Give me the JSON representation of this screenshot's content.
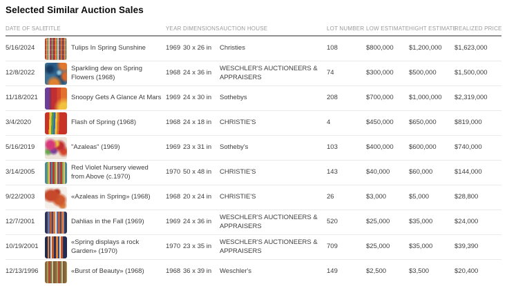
{
  "page_title": "Selected Similar Auction Sales",
  "styles": {
    "background": "#ffffff",
    "title_color": "#0a0a0a",
    "header_text_color": "#9b9b9b",
    "header_rule_color": "#8f8f8f",
    "body_text_color": "#3c3c3c",
    "row_divider_color": "#e9e9e9"
  },
  "chart_data": {
    "type": "table",
    "title": "Selected Similar Auction Sales",
    "columns": [
      "DATE OF SALE",
      "TITLE",
      "YEAR",
      "DIMENSIONS",
      "AUCTION HOUSE",
      "LOT NUMBER",
      "LOW ESTIMATE",
      "HIGHT ESTIMATE",
      "REALIZED PRICE"
    ],
    "rows": [
      {
        "date": "5/16/2024",
        "title": "Tulips In Spring Sunshine",
        "year": "1969",
        "dimensions": "30 x 26 in",
        "auction_house": "Christies",
        "lot_number": "108",
        "low_estimate": "$800,000",
        "hight_estimate": "$1,200,000",
        "realized_price": "$1,623,000",
        "thumbnail": "abstract painting with fine multicolor vertical stripes",
        "thumb_style": "background-image: repeating-linear-gradient(0deg, rgba(255,255,255,0.18) 0 1px, rgba(0,0,0,0) 1px 7px), repeating-linear-gradient(90deg, #bf3a2b 0 2px, #e09a3c 2px 4px, #2f6e8c 4px 5px, #e3d6a8 5px 7px, #a43b5e 7px 9px, #45806a 9px 10px, #d96a2e 10px 12px, #334f8c 12px 13px)"
      },
      {
        "date": "12/8/2022",
        "title": "Sparkling dew on Spring Flowers (1968)",
        "year": "1968",
        "dimensions": "24 x 36 in",
        "auction_house": "WESCHLER'S AUCTIONEERS & APPRAISERS",
        "lot_number": "74",
        "low_estimate": "$300,000",
        "hight_estimate": "$500,000",
        "realized_price": "$1,500,000",
        "thumbnail": "mottled blue abstract painting with orange accents",
        "thumb_style": "background-image: radial-gradient(circle at 88% 10%, #e2762d 0 14%, rgba(226,118,45,0) 30%), radial-gradient(circle at 96% 62%, #d96a2e 0 12%, rgba(217,106,46,0) 26%), radial-gradient(circle at 42% 96%, #e08132 0 16%, rgba(224,129,50,0) 34%), radial-gradient(circle at 22% 30%, #173a5e 0 10%, rgba(23,58,94,0) 26%), radial-gradient(circle at 65% 45%, #8fc3d9 0 6%, rgba(143,195,217,0) 18%), radial-gradient(circle at 50% 20%, #2a5d8a 0 20%, rgba(42,93,138,0) 45%), radial-gradient(circle at 70% 75%, #1d4a74 0 14%, rgba(29,74,116,0) 32%); background-color: #3a6f96"
      },
      {
        "date": "11/18/2021",
        "title": "Snoopy Gets A Glance At Mars",
        "year": "1969",
        "dimensions": "24 x 30 in",
        "auction_house": "Sothebys",
        "lot_number": "208",
        "low_estimate": "$700,000",
        "hight_estimate": "$1,000,000",
        "realized_price": "$2,319,000",
        "thumbnail": "abstract painting with purple, red and orange vertical bands",
        "thumb_style": "background-image: radial-gradient(circle at 88% 92%, #f2c13d 0 16%, rgba(242,193,61,0) 38%), linear-gradient(90deg, #6b3f9a 0 20%, #913057 20% 30%, #c22f33 30% 55%, #d4472b 55% 72%, #e4702d 72% 100%)"
      },
      {
        "date": "3/4/2020",
        "title": "Flash of Spring (1968)",
        "year": "1968",
        "dimensions": "24 x 18 in",
        "auction_house": "CHRISTIE'S",
        "lot_number": "4",
        "low_estimate": "$450,000",
        "hight_estimate": "$650,000",
        "realized_price": "$819,000",
        "thumbnail": "red abstract painting with rainbow zigzag stripes",
        "thumb_style": "background-image: linear-gradient(92deg, rgba(0,0,0,0) 0 20%, #e9c63c 20% 30%, #4d9b4b 30% 39%, #3a6cb0 39% 47%, #e9c63c 47% 55%, #d8742d 55% 64%, rgba(0,0,0,0) 64% 100%); background-color: #c93327"
      },
      {
        "date": "5/16/2019",
        "title": "\"Azaleas\" (1969)",
        "year": "1969",
        "dimensions": "23 x 31 in",
        "auction_house": "Sotheby's",
        "lot_number": "103",
        "low_estimate": "$400,000",
        "hight_estimate": "$600,000",
        "realized_price": "$740,000",
        "thumbnail": "colorful floral abstract with pink, red, purple and yellow blooms",
        "thumb_style": "background-image: radial-gradient(circle at 25% 35%, #d63a7a 0 16%, rgba(214,58,122,0) 32%), radial-gradient(circle at 50% 30%, #e9c63c 0 10%, rgba(233,198,60,0) 24%), radial-gradient(circle at 68% 40%, #c22f33 0 16%, rgba(194,47,51,0) 34%), radial-gradient(circle at 40% 60%, #7a3f9a 0 12%, rgba(122,63,154,0) 28%), radial-gradient(circle at 85% 65%, #d4472b 0 10%, rgba(212,71,43,0) 26%), radial-gradient(circle at 15% 65%, #6aa84f 0 8%, rgba(106,168,79,0) 20%); background-color: #ece4d8"
      },
      {
        "date": "3/14/2005",
        "title": "Red Violet Nursery viewed from Above (c.1970)",
        "year": "1970",
        "dimensions": "50 x 48 in",
        "auction_house": "CHRISTIE'S",
        "lot_number": "143",
        "low_estimate": "$40,000",
        "hight_estimate": "$60,000",
        "realized_price": "$144,000",
        "thumbnail": "vertical stripe painting with teal edges and red, green, yellow stripes",
        "thumb_style": "background-image: linear-gradient(90deg, #4d8a93 0 10%, rgba(0,0,0,0) 10% 90%, #4d8a93 90% 100%), repeating-linear-gradient(90deg, #c0392b 0 3px, #7fa65a 3px 5px, #e0c46a 5px 7px, #a43b5e 7px 9px, #4d8a93 9px 11px)"
      },
      {
        "date": "9/22/2003",
        "title": "«Azaleas in Spring» (1968)",
        "year": "1968",
        "dimensions": "20 x 24 in",
        "auction_house": "CHRISTIE'S",
        "lot_number": "26",
        "low_estimate": "$3,000",
        "hight_estimate": "$5,000",
        "realized_price": "$28,800",
        "thumbnail": "red and orange blossom clusters on a white background",
        "thumb_style": "background-image: radial-gradient(ellipse at 28% 40%, #c6492c 0 24%, rgba(198,73,44,0) 42%), radial-gradient(ellipse at 66% 60%, #cf5a2e 0 22%, rgba(207,90,46,0) 40%), radial-gradient(circle at 55% 25%, #b33a26 0 10%, rgba(179,58,38,0) 22%), radial-gradient(circle at 80% 85%, #d97b3f 0 8%, rgba(217,123,63,0) 18%); background-color: #f4f0e9"
      },
      {
        "date": "12/7/2001",
        "title": "Dahlias in the Fall (1969)",
        "year": "1969",
        "dimensions": "24 x 36 in",
        "auction_house": "WESCHLER'S AUCTIONEERS & APPRAISERS",
        "lot_number": "520",
        "low_estimate": "$25,000",
        "hight_estimate": "$35,000",
        "realized_price": "$24,000",
        "thumbnail": "vertical stripe painting with navy edges and orange, white, blue stripes",
        "thumb_style": "background-image: linear-gradient(90deg, #2b3560 0 14%, rgba(0,0,0,0) 14% 86%, #2b3560 86% 100%), repeating-linear-gradient(90deg, #d97b3f 0 3px, #e9e3d5 3px 5px, #5a6a9e 5px 7px, #c05a2f 7px 10px, #3a4a80 10px 12px)"
      },
      {
        "date": "10/19/2001",
        "title": "«Spring displays a rock Garden» (1970)",
        "year": "1970",
        "dimensions": "23 x 35 in",
        "auction_house": "WESCHLER'S AUCTIONEERS & APPRAISERS",
        "lot_number": "709",
        "low_estimate": "$25,000",
        "hight_estimate": "$35,000",
        "realized_price": "$39,390",
        "thumbnail": "dark blue vertical stripe painting with orange and cream stripes",
        "thumb_style": "background-image: linear-gradient(90deg, #1f2a55 0 12%, rgba(0,0,0,0) 12% 88%, #1f2a55 88% 100%), repeating-linear-gradient(90deg, #24305e 0 3px, #e8832f 3px 6px, #34457a 6px 8px, #e9e0cd 8px 10px, #c45a2a 10px 13px)"
      },
      {
        "date": "12/13/1996",
        "title": "«Burst of Beauty» (1968)",
        "year": "1968",
        "dimensions": "36 x 39 in",
        "auction_house": "Weschler's",
        "lot_number": "149",
        "low_estimate": "$2,500",
        "hight_estimate": "$3,500",
        "realized_price": "$20,400",
        "thumbnail": "muted olive, brown and red vertical stripe painting",
        "thumb_style": "background-image: repeating-linear-gradient(90deg, #8a6a3c 0 3px, #aa9a58 3px 5px, #b04a35 5px 8px, #6d7a4a 8px 10px, #d3c291 10px 12px, #7a5a38 12px 14px)"
      }
    ]
  }
}
